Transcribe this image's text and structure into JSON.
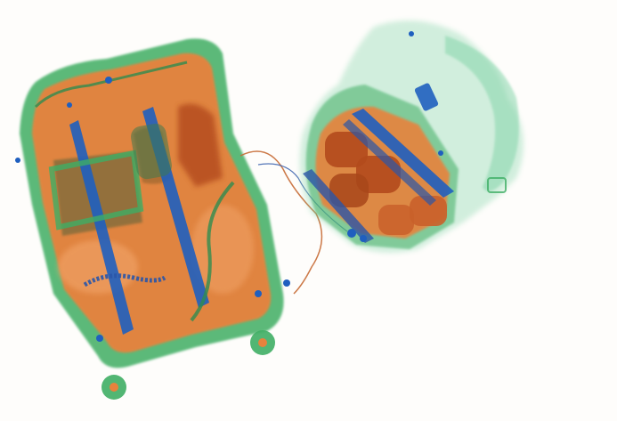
{
  "scene": {
    "background": "#fefdfb",
    "palette": {
      "organic_orange": "#e8823c",
      "organic_dark": "#b24a1c",
      "inorganic_green": "#3fae64",
      "metal_blue": "#1f5fbf",
      "light_green": "#7fd3a6"
    },
    "objects": [
      {
        "kind": "suitcase",
        "name": "suitcase"
      },
      {
        "kind": "backpack",
        "name": "backpack"
      },
      {
        "kind": "cable",
        "name": "headphone-cable"
      }
    ]
  }
}
